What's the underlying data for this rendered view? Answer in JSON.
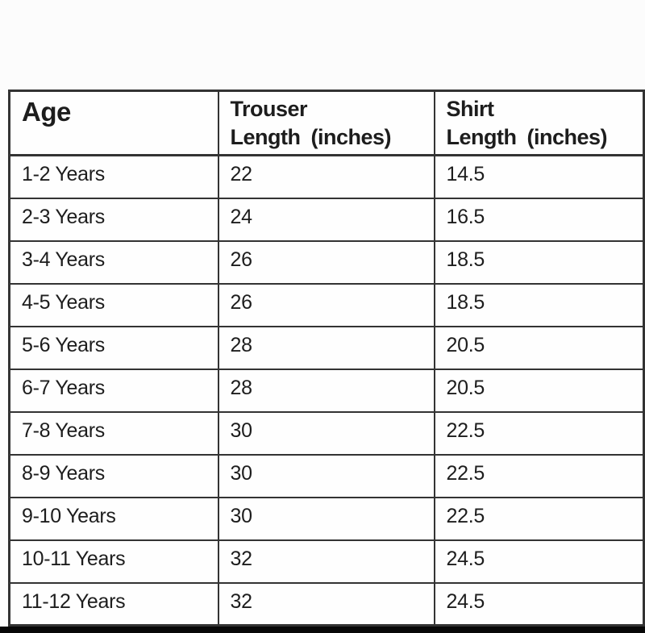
{
  "page": {
    "background_color": "#fcfcfc",
    "bottom_bar_color": "#070707"
  },
  "table": {
    "text_color": "#1d1d1d",
    "border_color": "#333333",
    "columns": [
      {
        "label": "Age",
        "sublabel": ""
      },
      {
        "label": "Trouser",
        "sublabel": "Length (inches)"
      },
      {
        "label": "Shirt",
        "sublabel": "Length (inches)"
      }
    ],
    "rows": [
      {
        "age": "1-2 Years",
        "trouser_length": "22",
        "shirt_length": "14.5"
      },
      {
        "age": "2-3 Years",
        "trouser_length": "24",
        "shirt_length": "16.5"
      },
      {
        "age": "3-4 Years",
        "trouser_length": "26",
        "shirt_length": "18.5"
      },
      {
        "age": "4-5 Years",
        "trouser_length": "26",
        "shirt_length": "18.5"
      },
      {
        "age": "5-6 Years",
        "trouser_length": "28",
        "shirt_length": "20.5"
      },
      {
        "age": "6-7 Years",
        "trouser_length": "28",
        "shirt_length": "20.5"
      },
      {
        "age": "7-8 Years",
        "trouser_length": "30",
        "shirt_length": "22.5"
      },
      {
        "age": "8-9 Years",
        "trouser_length": "30",
        "shirt_length": "22.5"
      },
      {
        "age": "9-10 Years",
        "trouser_length": "30",
        "shirt_length": "22.5"
      },
      {
        "age": "10-11 Years",
        "trouser_length": "32",
        "shirt_length": "24.5"
      },
      {
        "age": "11-12 Years",
        "trouser_length": "32",
        "shirt_length": "24.5"
      }
    ]
  },
  "chart_data": {
    "type": "table",
    "columns": [
      "Age",
      "Trouser Length (inches)",
      "Shirt Length (inches)"
    ],
    "categories": [
      "1-2 Years",
      "2-3 Years",
      "3-4 Years",
      "4-5 Years",
      "5-6 Years",
      "6-7 Years",
      "7-8 Years",
      "8-9 Years",
      "9-10 Years",
      "10-11 Years",
      "11-12 Years"
    ],
    "series": [
      {
        "name": "Trouser Length (inches)",
        "values": [
          22,
          24,
          26,
          26,
          28,
          28,
          30,
          30,
          30,
          32,
          32
        ]
      },
      {
        "name": "Shirt Length (inches)",
        "values": [
          14.5,
          16.5,
          18.5,
          18.5,
          20.5,
          20.5,
          22.5,
          22.5,
          22.5,
          24.5,
          24.5
        ]
      }
    ]
  }
}
